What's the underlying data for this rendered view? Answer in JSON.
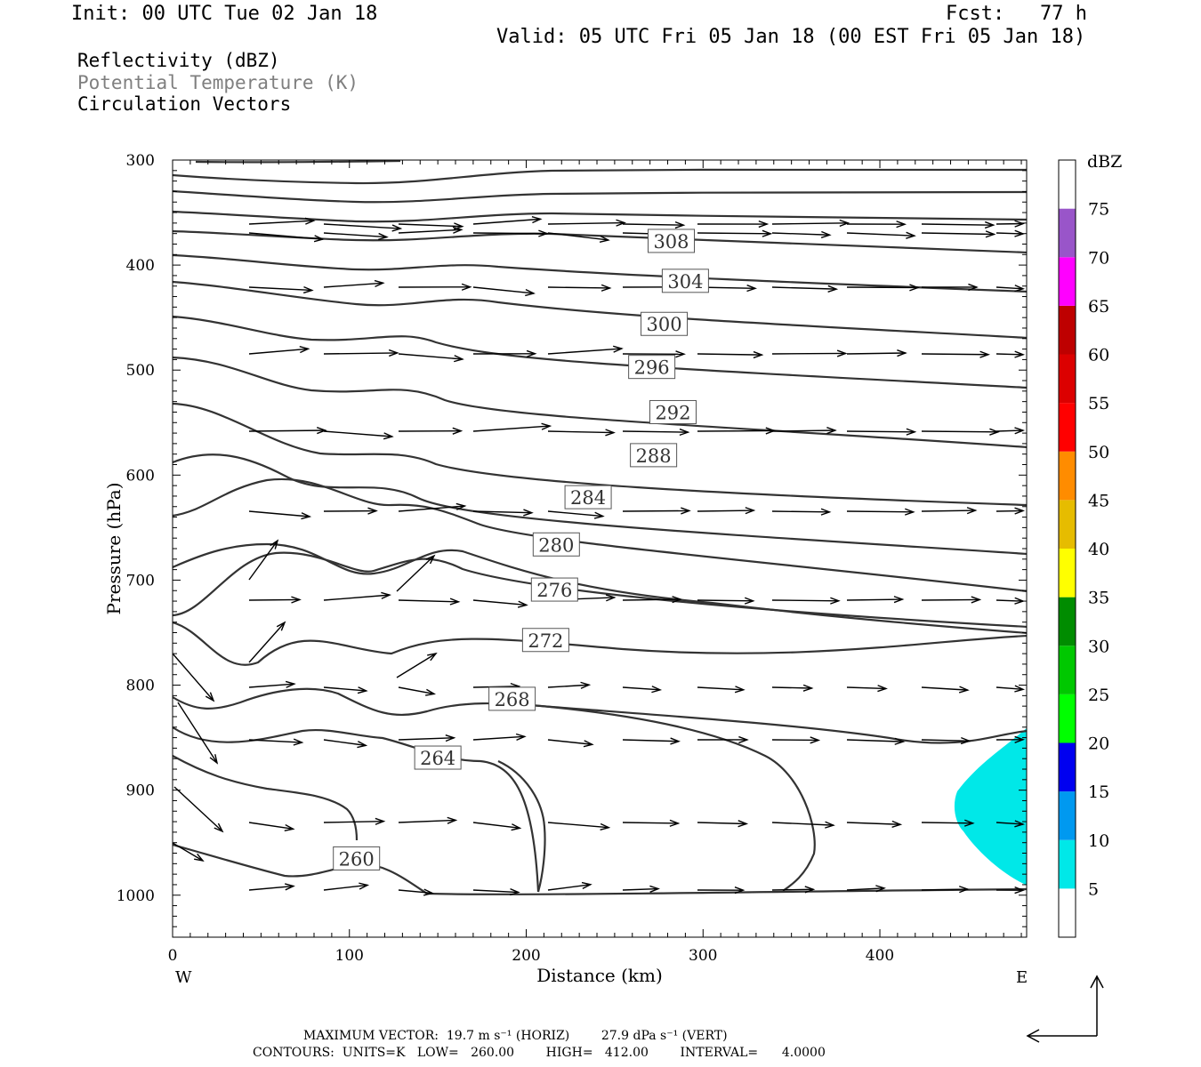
{
  "header": {
    "init": "Init: 00 UTC Tue 02 Jan 18",
    "fcst": "Fcst:   77 h",
    "valid": "Valid: 05 UTC Fri 05 Jan 18 (00 EST Fri 05 Jan 18)"
  },
  "legend_lines": [
    {
      "text": "Reflectivity (dBZ)",
      "color": "#000000"
    },
    {
      "text": "Potential Temperature (K)",
      "color": "#7f7f7f"
    },
    {
      "text": "Circulation Vectors",
      "color": "#000000"
    }
  ],
  "chart_data": {
    "type": "contour",
    "xlabel": "Distance (km)",
    "ylabel": "Pressure (hPa)",
    "xlim": [
      0,
      483
    ],
    "ylim": [
      1040,
      300
    ],
    "x_ticks": [
      0,
      100,
      200,
      300,
      400
    ],
    "y_ticks": [
      300,
      400,
      500,
      600,
      700,
      800,
      900,
      1000
    ],
    "west_label": "W",
    "east_label": "E",
    "theta_contours": [
      {
        "level": 260,
        "label_at": [
          104,
          965
        ]
      },
      {
        "level": 264,
        "label_at": [
          150,
          869
        ]
      },
      {
        "level": 268,
        "label_at": [
          192,
          813
        ]
      },
      {
        "level": 272,
        "label_at": [
          211,
          757
        ]
      },
      {
        "level": 276,
        "label_at": [
          216,
          709
        ]
      },
      {
        "level": 280,
        "label_at": [
          217,
          666
        ]
      },
      {
        "level": 284,
        "label_at": [
          235,
          621
        ]
      },
      {
        "level": 288,
        "label_at": [
          272,
          581
        ]
      },
      {
        "level": 292,
        "label_at": [
          283,
          540
        ]
      },
      {
        "level": 296,
        "label_at": [
          271,
          497
        ]
      },
      {
        "level": 300,
        "label_at": [
          278,
          456
        ]
      },
      {
        "level": 304,
        "label_at": [
          290,
          415
        ]
      },
      {
        "level": 308,
        "label_at": [
          282,
          377
        ]
      }
    ],
    "reflectivity_region": {
      "x_range": [
        441,
        483
      ],
      "p_range": [
        840,
        995
      ],
      "dbz": 5
    },
    "colorbar": {
      "title": "dBZ",
      "levels": [
        "5",
        "10",
        "15",
        "20",
        "25",
        "30",
        "35",
        "40",
        "45",
        "50",
        "55",
        "60",
        "65",
        "70",
        "75"
      ],
      "colors": [
        "#ffffff",
        "#00e8e8",
        "#0099f0",
        "#0000f0",
        "#00ff00",
        "#00c800",
        "#008c00",
        "#ffff00",
        "#e6bc00",
        "#ff8c00",
        "#ff0000",
        "#dc0000",
        "#be0000",
        "#ff00ff",
        "#9955c9",
        "#ffffff"
      ]
    }
  },
  "footer": {
    "max_vector": "MAXIMUM VECTOR:  19.7 m s⁻¹ (HORIZ)        27.9 dPa s⁻¹ (VERT)",
    "contours": "CONTOURS:  UNITS=K   LOW=   260.00        HIGH=   412.00        INTERVAL=      4.0000"
  }
}
